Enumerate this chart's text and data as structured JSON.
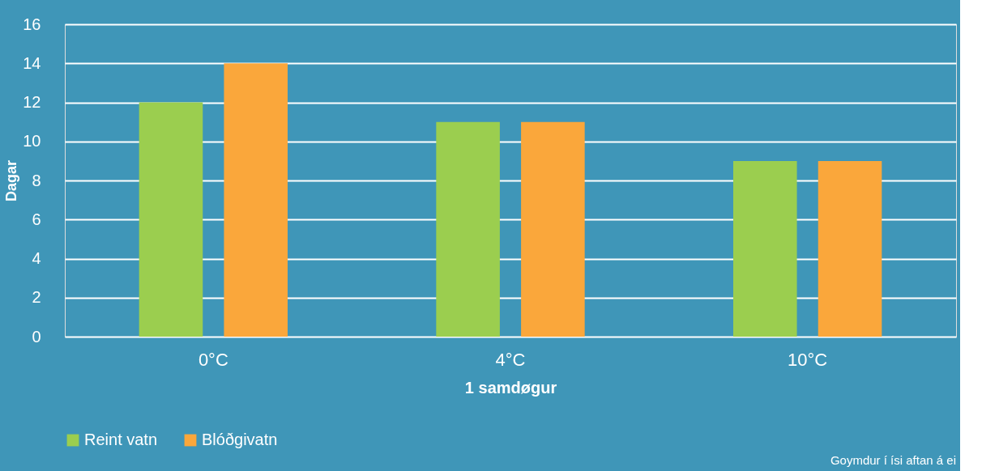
{
  "chart_data": {
    "type": "bar",
    "categories": [
      "0°C",
      "4°C",
      "10°C"
    ],
    "xlabel": "1 samdøgur",
    "ylabel": "Dagar",
    "series": [
      {
        "name": "Reint vatn",
        "color": "#9bce4f",
        "values": [
          12,
          11,
          9
        ]
      },
      {
        "name": "Blóðgivatn",
        "color": "#faa73b",
        "values": [
          14,
          11,
          9
        ]
      }
    ],
    "ylim": [
      0,
      16
    ],
    "yticks": [
      0,
      2,
      4,
      6,
      8,
      10,
      12,
      14,
      16
    ],
    "grid": "y",
    "legend": "bottom",
    "annotations": [
      "Goymdur í ísi aftan á ei"
    ]
  }
}
